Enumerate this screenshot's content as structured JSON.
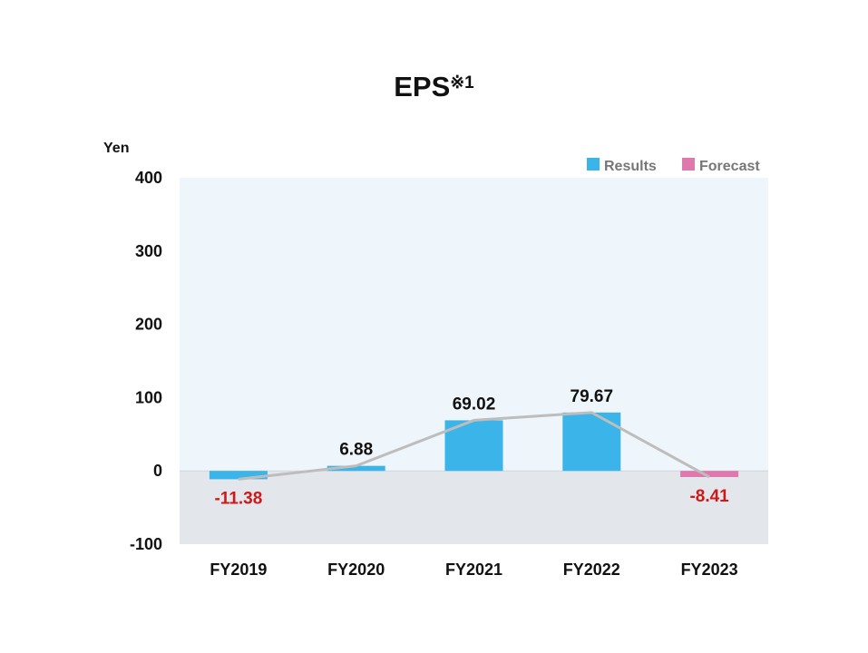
{
  "chart_data": {
    "type": "bar",
    "title": "EPS",
    "title_note": "※1",
    "ylabel": "Yen",
    "categories": [
      "FY2019",
      "FY2020",
      "FY2021",
      "FY2022",
      "FY2023"
    ],
    "series": [
      {
        "name": "Results",
        "values": [
          -11.38,
          6.88,
          69.02,
          79.67,
          null
        ],
        "color": "#3bb4ea"
      },
      {
        "name": "Forecast",
        "values": [
          null,
          null,
          null,
          null,
          -8.41
        ],
        "color": "#de78ad"
      }
    ],
    "labels": [
      "-11.38",
      "6.88",
      "69.02",
      "79.67",
      "-8.41"
    ],
    "ylim": [
      -100,
      400
    ],
    "yticks": [
      400,
      300,
      200,
      100,
      0,
      -100
    ],
    "trend_line": true,
    "legend_position": "top-right",
    "colors": {
      "positive_label": "#111111",
      "negative_label": "#d01818",
      "plot_bg_positive": "#eef5fb",
      "plot_bg_negative": "#e3e7ec",
      "trend_line": "#bdbdbd"
    }
  }
}
